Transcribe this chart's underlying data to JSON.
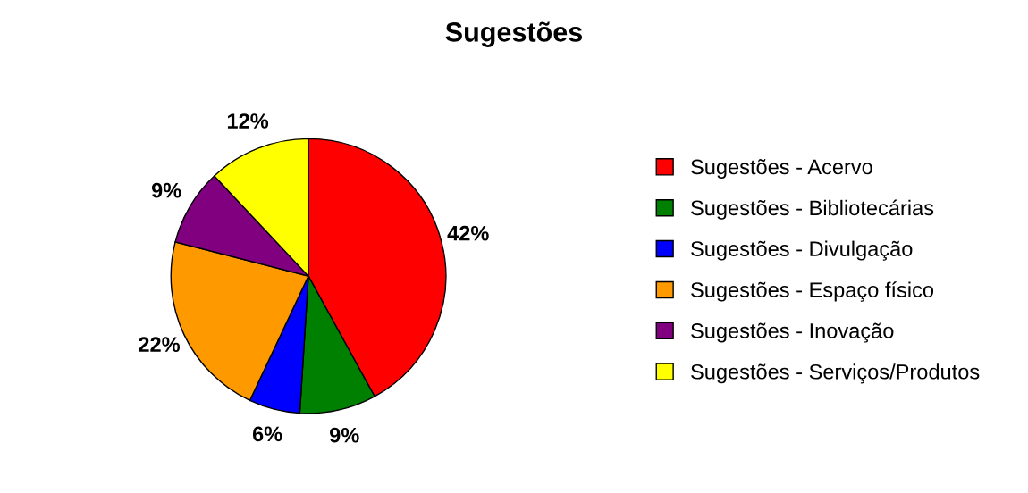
{
  "chart_data": {
    "type": "pie",
    "title": "Sugestões",
    "categories": [
      "Sugestões - Acervo",
      "Sugestões - Bibliotecárias",
      "Sugestões - Divulgação",
      "Sugestões - Espaço físico",
      "Sugestões - Inovação",
      "Sugestões - Serviços/Produtos"
    ],
    "values": [
      42,
      9,
      6,
      22,
      9,
      12
    ],
    "value_labels": [
      "42%",
      "9%",
      "6%",
      "22%",
      "9%",
      "12%"
    ],
    "colors": [
      "#ff0000",
      "#008000",
      "#0000ff",
      "#ff9900",
      "#800080",
      "#ffff00"
    ],
    "legend": "right"
  }
}
